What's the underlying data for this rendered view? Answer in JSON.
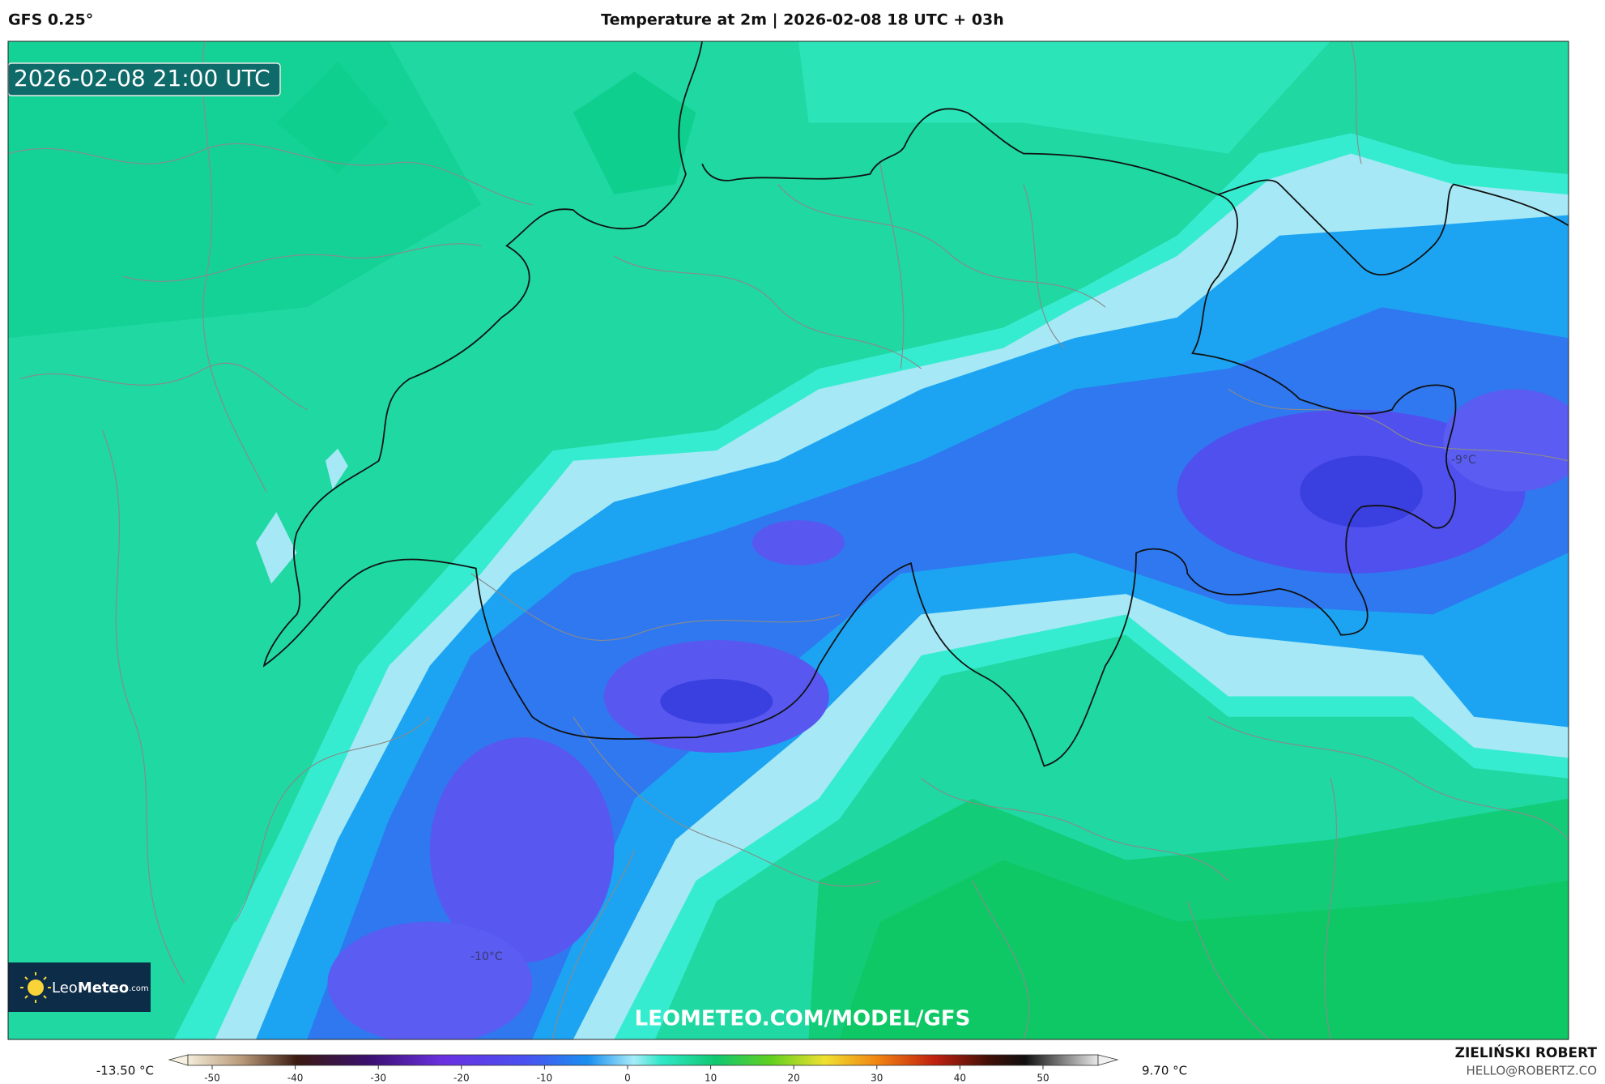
{
  "header": {
    "model": "GFS 0.25°",
    "title": "Temperature at 2m | 2026-02-08 18 UTC + 03h"
  },
  "map": {
    "valid_time": "2026-02-08 21:00 UTC",
    "labels": [
      "-10°C",
      "-9°C"
    ],
    "watermark": "LEOMETEO.COM/MODEL/GFS",
    "logo": {
      "name_light": "Leo",
      "name_bold": "Meteo",
      "suffix": ".com"
    }
  },
  "colorbar": {
    "min_label": "-13.50 °C",
    "max_label": "9.70 °C",
    "ticks": [
      -50,
      -40,
      -30,
      -20,
      -10,
      0,
      10,
      20,
      30,
      40,
      50
    ]
  },
  "footer": {
    "author": "ZIELIŃSKI ROBERT",
    "email": "HELLO@ROBERTZ.CO"
  }
}
